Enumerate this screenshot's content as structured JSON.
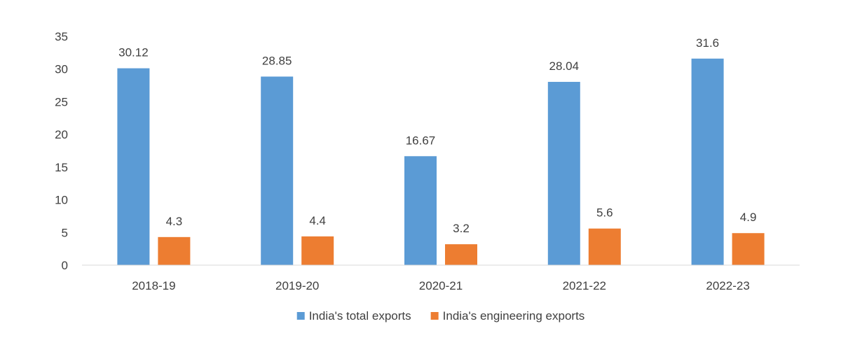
{
  "chart_data": {
    "type": "bar",
    "title": "",
    "xlabel": "",
    "ylabel": "",
    "categories": [
      "2018-19",
      "2019-20",
      "2020-21",
      "2021-22",
      "2022-23"
    ],
    "series": [
      {
        "name": "India's total exports",
        "color": "#5b9bd5",
        "values": [
          30.12,
          28.85,
          16.67,
          28.04,
          31.6
        ],
        "labels": [
          "30.12",
          "28.85",
          "16.67",
          "28.04",
          "31.6"
        ]
      },
      {
        "name": "India's engineering exports",
        "color": "#ed7d31",
        "values": [
          4.3,
          4.4,
          3.2,
          5.6,
          4.9
        ],
        "labels": [
          "4.3",
          "4.4",
          "3.2",
          "5.6",
          "4.9"
        ]
      }
    ],
    "ylim": [
      0,
      35
    ],
    "yticks": [
      0,
      5,
      10,
      15,
      20,
      25,
      30,
      35
    ],
    "grid": false,
    "legend": "bottom",
    "data_labels": true
  }
}
